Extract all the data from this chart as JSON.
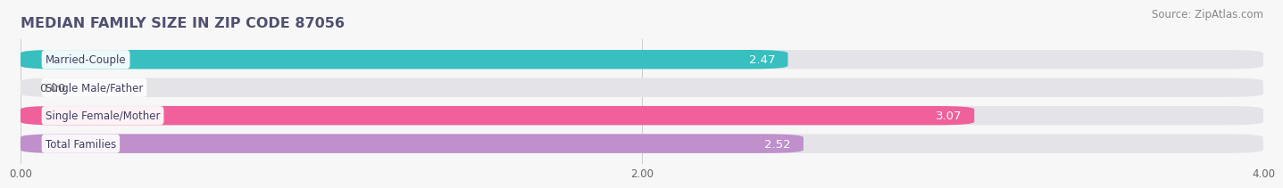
{
  "title": "MEDIAN FAMILY SIZE IN ZIP CODE 87056",
  "source": "Source: ZipAtlas.com",
  "categories": [
    "Married-Couple",
    "Single Male/Father",
    "Single Female/Mother",
    "Total Families"
  ],
  "values": [
    2.47,
    0.0,
    3.07,
    2.52
  ],
  "bar_colors": [
    "#38bfbf",
    "#b0c4f0",
    "#f0609a",
    "#bf90cc"
  ],
  "xlim": [
    0,
    4.0
  ],
  "xticks": [
    0.0,
    2.0,
    4.0
  ],
  "xtick_labels": [
    "0.00",
    "2.00",
    "4.00"
  ],
  "background_color": "#f7f7f7",
  "bar_bg_color": "#e4e4e8",
  "title_color": "#505070",
  "title_fontsize": 11.5,
  "source_fontsize": 8.5,
  "bar_height": 0.68,
  "bar_label_fontsize": 9.5,
  "category_fontsize": 8.5,
  "value_label_color_inside": "white",
  "value_label_color_outside": "#555555"
}
